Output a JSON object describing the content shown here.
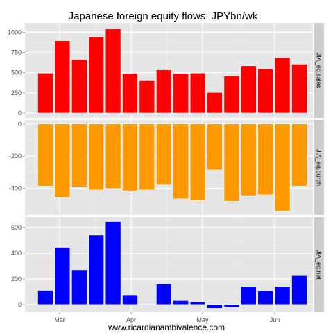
{
  "chart_data": {
    "type": "bar",
    "title": "Japanese foreign equity flows: JPYbn/wk",
    "caption": "www.ricardianambivalence.com",
    "x_labels": [
      "Mar",
      "Apr",
      "May",
      "Jun"
    ],
    "grid": true,
    "panels": [
      {
        "strip_label": "JIA_eq.sales",
        "color": "#ff0000",
        "values": [
          495,
          895,
          660,
          940,
          1040,
          490,
          400,
          535,
          490,
          495,
          255,
          460,
          585,
          545,
          685,
          605
        ],
        "ylim": [
          -60,
          1115
        ],
        "yticks": [
          0,
          250,
          500,
          750,
          1000
        ]
      },
      {
        "strip_label": "JIA_eq.purch",
        "color": "#ff9900",
        "values": [
          -385,
          -455,
          -390,
          -410,
          -400,
          -415,
          -410,
          -375,
          -465,
          -475,
          -285,
          -480,
          -445,
          -440,
          -540,
          -385
        ],
        "ylim": [
          -565,
          25
        ],
        "yticks": [
          0,
          -200,
          -400
        ]
      },
      {
        "strip_label": "JIA_eq.net",
        "color": "#0000ff",
        "values": [
          110,
          445,
          270,
          540,
          645,
          75,
          -5,
          160,
          30,
          20,
          -30,
          -20,
          140,
          105,
          140,
          225
        ],
        "ylim": [
          -60,
          680
        ],
        "yticks": [
          0,
          200,
          400,
          600
        ]
      }
    ]
  }
}
